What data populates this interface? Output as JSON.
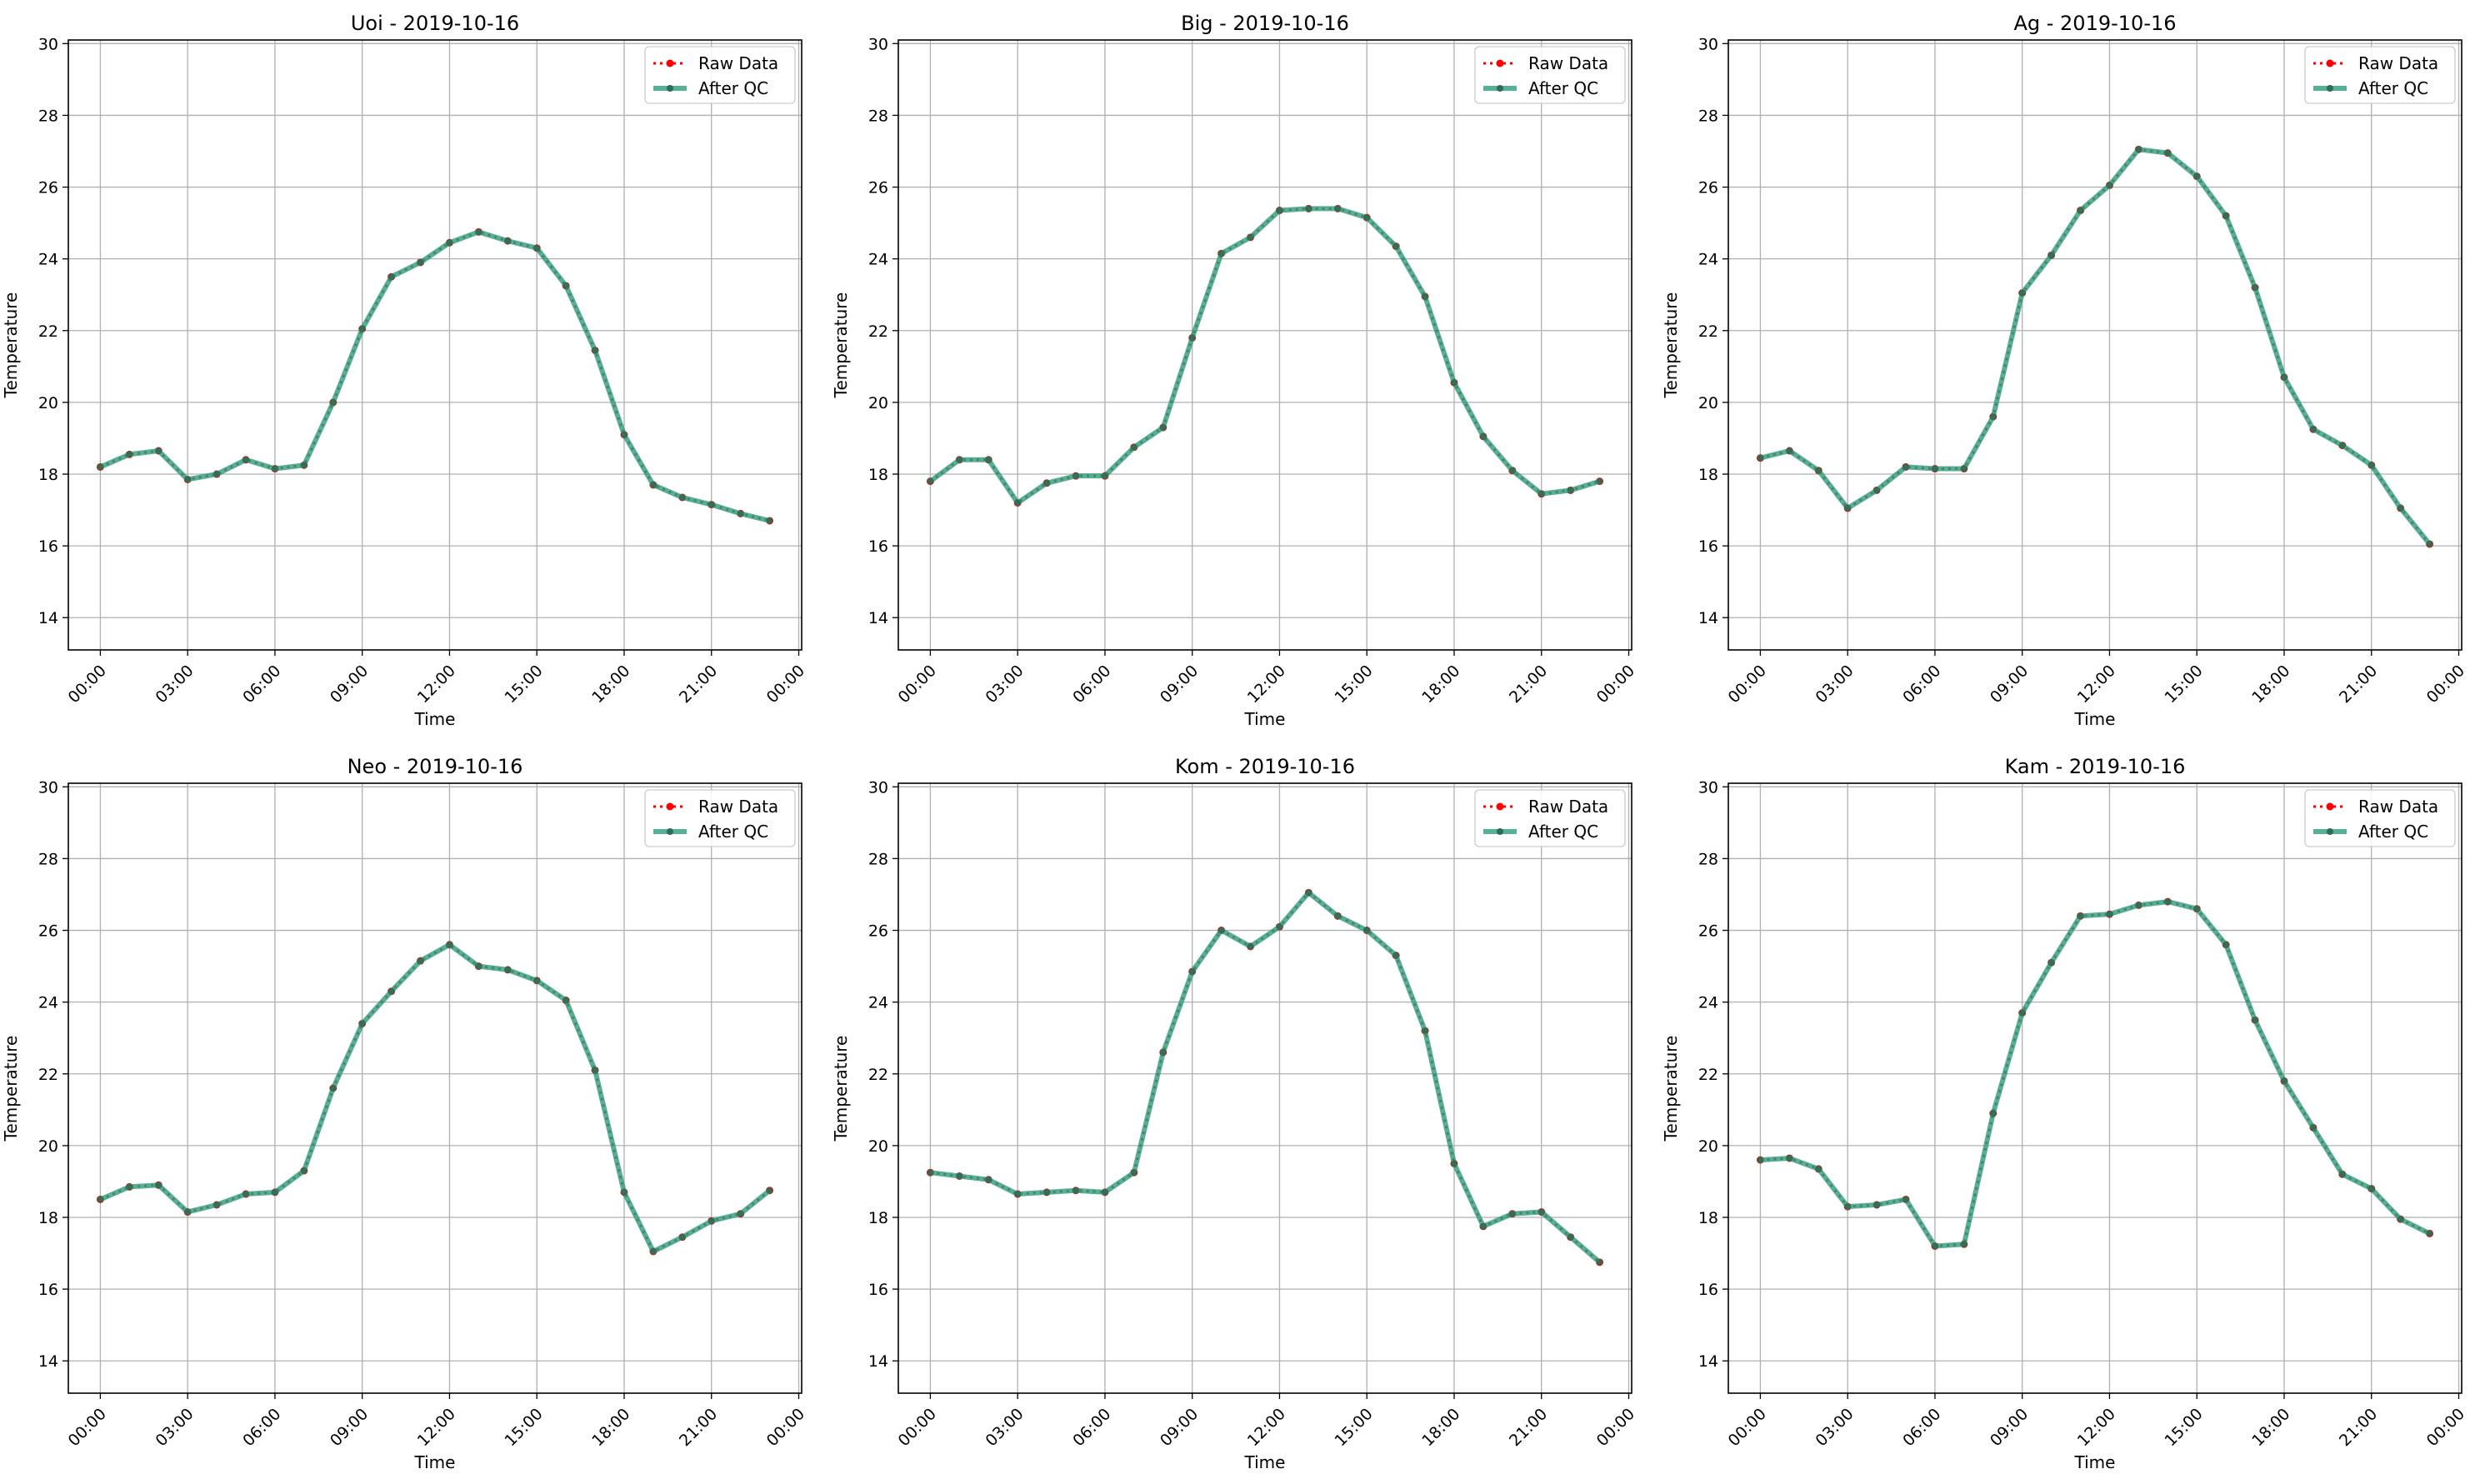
{
  "figure": {
    "background": "#ffffff",
    "grid_color": "#b0b0b0",
    "raw_color": "#ff0000",
    "qc_color": "#2a9d7c",
    "marker_color": "#2f6b55"
  },
  "chart_data": [
    {
      "type": "line",
      "title": "Uoi - 2019-10-16",
      "xlabel": "Time",
      "ylabel": "Temperature",
      "ylim": [
        13.1,
        30.1
      ],
      "yticks": [
        14,
        16,
        18,
        20,
        22,
        24,
        26,
        28,
        30
      ],
      "xlim_hours": [
        -1.1,
        24.1
      ],
      "xticks": [
        "00:00",
        "03:00",
        "06:00",
        "09:00",
        "12:00",
        "15:00",
        "18:00",
        "21:00",
        "00:00"
      ],
      "x": [
        "00:00",
        "01:00",
        "02:00",
        "03:00",
        "04:00",
        "05:00",
        "06:00",
        "07:00",
        "08:00",
        "09:00",
        "10:00",
        "11:00",
        "12:00",
        "13:00",
        "14:00",
        "15:00",
        "16:00",
        "17:00",
        "18:00",
        "19:00",
        "20:00",
        "21:00",
        "22:00",
        "23:00"
      ],
      "grid": true,
      "legend_position": "top-right",
      "series": [
        {
          "name": "Raw Data",
          "style": "dotted",
          "values": [
            18.2,
            18.55,
            18.65,
            17.85,
            18.0,
            18.4,
            18.15,
            18.25,
            20.0,
            22.05,
            23.5,
            23.9,
            24.45,
            24.75,
            24.5,
            24.3,
            23.25,
            21.45,
            19.1,
            17.7,
            17.35,
            17.15,
            16.9,
            16.7
          ]
        },
        {
          "name": "After QC",
          "style": "solid",
          "values": [
            18.2,
            18.55,
            18.65,
            17.85,
            18.0,
            18.4,
            18.15,
            18.25,
            20.0,
            22.05,
            23.5,
            23.9,
            24.45,
            24.75,
            24.5,
            24.3,
            23.25,
            21.45,
            19.1,
            17.7,
            17.35,
            17.15,
            16.9,
            16.7
          ]
        }
      ]
    },
    {
      "type": "line",
      "title": "Big - 2019-10-16",
      "xlabel": "Time",
      "ylabel": "Temperature",
      "ylim": [
        13.1,
        30.1
      ],
      "yticks": [
        14,
        16,
        18,
        20,
        22,
        24,
        26,
        28,
        30
      ],
      "xlim_hours": [
        -1.1,
        24.1
      ],
      "xticks": [
        "00:00",
        "03:00",
        "06:00",
        "09:00",
        "12:00",
        "15:00",
        "18:00",
        "21:00",
        "00:00"
      ],
      "x": [
        "00:00",
        "01:00",
        "02:00",
        "03:00",
        "04:00",
        "05:00",
        "06:00",
        "07:00",
        "08:00",
        "09:00",
        "10:00",
        "11:00",
        "12:00",
        "13:00",
        "14:00",
        "15:00",
        "16:00",
        "17:00",
        "18:00",
        "19:00",
        "20:00",
        "21:00",
        "22:00",
        "23:00"
      ],
      "grid": true,
      "legend_position": "top-right",
      "series": [
        {
          "name": "Raw Data",
          "style": "dotted",
          "values": [
            17.8,
            18.4,
            18.4,
            17.2,
            17.75,
            17.95,
            17.95,
            18.75,
            19.3,
            21.8,
            24.15,
            24.6,
            25.35,
            25.4,
            25.4,
            25.15,
            24.35,
            22.95,
            20.55,
            19.05,
            18.1,
            17.45,
            17.55,
            17.8
          ]
        },
        {
          "name": "After QC",
          "style": "solid",
          "values": [
            17.8,
            18.4,
            18.4,
            17.2,
            17.75,
            17.95,
            17.95,
            18.75,
            19.3,
            21.8,
            24.15,
            24.6,
            25.35,
            25.4,
            25.4,
            25.15,
            24.35,
            22.95,
            20.55,
            19.05,
            18.1,
            17.45,
            17.55,
            17.8
          ]
        }
      ]
    },
    {
      "type": "line",
      "title": "Ag - 2019-10-16",
      "xlabel": "Time",
      "ylabel": "Temperature",
      "ylim": [
        13.1,
        30.1
      ],
      "yticks": [
        14,
        16,
        18,
        20,
        22,
        24,
        26,
        28,
        30
      ],
      "xlim_hours": [
        -1.1,
        24.1
      ],
      "xticks": [
        "00:00",
        "03:00",
        "06:00",
        "09:00",
        "12:00",
        "15:00",
        "18:00",
        "21:00",
        "00:00"
      ],
      "x": [
        "00:00",
        "01:00",
        "02:00",
        "03:00",
        "04:00",
        "05:00",
        "06:00",
        "07:00",
        "08:00",
        "09:00",
        "10:00",
        "11:00",
        "12:00",
        "13:00",
        "14:00",
        "15:00",
        "16:00",
        "17:00",
        "18:00",
        "19:00",
        "20:00",
        "21:00",
        "22:00",
        "23:00"
      ],
      "grid": true,
      "legend_position": "top-right",
      "series": [
        {
          "name": "Raw Data",
          "style": "dotted",
          "values": [
            18.45,
            18.65,
            18.1,
            17.05,
            17.55,
            18.2,
            18.15,
            18.15,
            19.6,
            23.05,
            24.1,
            25.35,
            26.05,
            27.05,
            26.95,
            26.3,
            25.2,
            23.2,
            20.7,
            19.25,
            18.8,
            18.25,
            17.05,
            16.05
          ]
        },
        {
          "name": "After QC",
          "style": "solid",
          "values": [
            18.45,
            18.65,
            18.1,
            17.05,
            17.55,
            18.2,
            18.15,
            18.15,
            19.6,
            23.05,
            24.1,
            25.35,
            26.05,
            27.05,
            26.95,
            26.3,
            25.2,
            23.2,
            20.7,
            19.25,
            18.8,
            18.25,
            17.05,
            16.05
          ]
        }
      ]
    },
    {
      "type": "line",
      "title": "Neo - 2019-10-16",
      "xlabel": "Time",
      "ylabel": "Temperature",
      "ylim": [
        13.1,
        30.1
      ],
      "yticks": [
        14,
        16,
        18,
        20,
        22,
        24,
        26,
        28,
        30
      ],
      "xlim_hours": [
        -1.1,
        24.1
      ],
      "xticks": [
        "00:00",
        "03:00",
        "06:00",
        "09:00",
        "12:00",
        "15:00",
        "18:00",
        "21:00",
        "00:00"
      ],
      "x": [
        "00:00",
        "01:00",
        "02:00",
        "03:00",
        "04:00",
        "05:00",
        "06:00",
        "07:00",
        "08:00",
        "09:00",
        "10:00",
        "11:00",
        "12:00",
        "13:00",
        "14:00",
        "15:00",
        "16:00",
        "17:00",
        "18:00",
        "19:00",
        "20:00",
        "21:00",
        "22:00",
        "23:00"
      ],
      "grid": true,
      "legend_position": "top-right",
      "series": [
        {
          "name": "Raw Data",
          "style": "dotted",
          "values": [
            18.5,
            18.85,
            18.9,
            18.15,
            18.35,
            18.65,
            18.7,
            19.3,
            21.6,
            23.4,
            24.3,
            25.15,
            25.6,
            25.0,
            24.9,
            24.6,
            24.05,
            22.1,
            18.7,
            17.05,
            17.45,
            17.9,
            18.1,
            18.75
          ]
        },
        {
          "name": "After QC",
          "style": "solid",
          "values": [
            18.5,
            18.85,
            18.9,
            18.15,
            18.35,
            18.65,
            18.7,
            19.3,
            21.6,
            23.4,
            24.3,
            25.15,
            25.6,
            25.0,
            24.9,
            24.6,
            24.05,
            22.1,
            18.7,
            17.05,
            17.45,
            17.9,
            18.1,
            18.75
          ]
        }
      ]
    },
    {
      "type": "line",
      "title": "Kom - 2019-10-16",
      "xlabel": "Time",
      "ylabel": "Temperature",
      "ylim": [
        13.1,
        30.1
      ],
      "yticks": [
        14,
        16,
        18,
        20,
        22,
        24,
        26,
        28,
        30
      ],
      "xlim_hours": [
        -1.1,
        24.1
      ],
      "xticks": [
        "00:00",
        "03:00",
        "06:00",
        "09:00",
        "12:00",
        "15:00",
        "18:00",
        "21:00",
        "00:00"
      ],
      "x": [
        "00:00",
        "01:00",
        "02:00",
        "03:00",
        "04:00",
        "05:00",
        "06:00",
        "07:00",
        "08:00",
        "09:00",
        "10:00",
        "11:00",
        "12:00",
        "13:00",
        "14:00",
        "15:00",
        "16:00",
        "17:00",
        "18:00",
        "19:00",
        "20:00",
        "21:00",
        "22:00",
        "23:00"
      ],
      "grid": true,
      "legend_position": "top-right",
      "series": [
        {
          "name": "Raw Data",
          "style": "dotted",
          "values": [
            19.25,
            19.15,
            19.05,
            18.65,
            18.7,
            18.75,
            18.7,
            19.25,
            22.6,
            24.85,
            26.0,
            25.55,
            26.1,
            27.05,
            26.4,
            26.0,
            25.3,
            23.2,
            19.5,
            17.75,
            18.1,
            18.15,
            17.45,
            16.75
          ]
        },
        {
          "name": "After QC",
          "style": "solid",
          "values": [
            19.25,
            19.15,
            19.05,
            18.65,
            18.7,
            18.75,
            18.7,
            19.25,
            22.6,
            24.85,
            26.0,
            25.55,
            26.1,
            27.05,
            26.4,
            26.0,
            25.3,
            23.2,
            19.5,
            17.75,
            18.1,
            18.15,
            17.45,
            16.75
          ]
        }
      ]
    },
    {
      "type": "line",
      "title": "Kam - 2019-10-16",
      "xlabel": "Time",
      "ylabel": "Temperature",
      "ylim": [
        13.1,
        30.1
      ],
      "yticks": [
        14,
        16,
        18,
        20,
        22,
        24,
        26,
        28,
        30
      ],
      "xlim_hours": [
        -1.1,
        24.1
      ],
      "xticks": [
        "00:00",
        "03:00",
        "06:00",
        "09:00",
        "12:00",
        "15:00",
        "18:00",
        "21:00",
        "00:00"
      ],
      "x": [
        "00:00",
        "01:00",
        "02:00",
        "03:00",
        "04:00",
        "05:00",
        "06:00",
        "07:00",
        "08:00",
        "09:00",
        "10:00",
        "11:00",
        "12:00",
        "13:00",
        "14:00",
        "15:00",
        "16:00",
        "17:00",
        "18:00",
        "19:00",
        "20:00",
        "21:00",
        "22:00",
        "23:00"
      ],
      "grid": true,
      "legend_position": "top-right",
      "series": [
        {
          "name": "Raw Data",
          "style": "dotted",
          "values": [
            19.6,
            19.65,
            19.35,
            18.3,
            18.35,
            18.5,
            17.2,
            17.25,
            20.9,
            23.7,
            25.1,
            26.4,
            26.45,
            26.7,
            26.8,
            26.6,
            25.6,
            23.5,
            21.8,
            20.5,
            19.2,
            18.8,
            17.95,
            17.55
          ]
        },
        {
          "name": "After QC",
          "style": "solid",
          "values": [
            19.6,
            19.65,
            19.35,
            18.3,
            18.35,
            18.5,
            17.2,
            17.25,
            20.9,
            23.7,
            25.1,
            26.4,
            26.45,
            26.7,
            26.8,
            26.6,
            25.6,
            23.5,
            21.8,
            20.5,
            19.2,
            18.8,
            17.95,
            17.55
          ]
        }
      ]
    }
  ]
}
